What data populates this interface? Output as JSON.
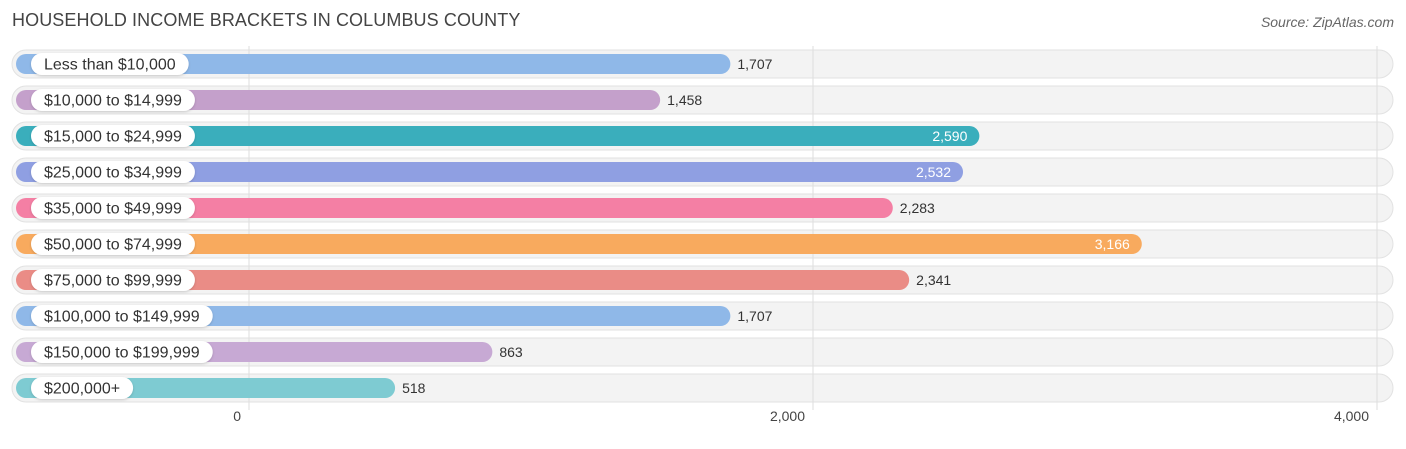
{
  "title": "HOUSEHOLD INCOME BRACKETS IN COLUMBUS COUNTY",
  "source": "Source: ZipAtlas.com",
  "chart_data": {
    "type": "bar",
    "orientation": "horizontal",
    "title": "HOUSEHOLD INCOME BRACKETS IN COLUMBUS COUNTY",
    "categories": [
      "Less than $10,000",
      "$10,000 to $14,999",
      "$15,000 to $24,999",
      "$25,000 to $34,999",
      "$35,000 to $49,999",
      "$50,000 to $74,999",
      "$75,000 to $99,999",
      "$100,000 to $149,999",
      "$150,000 to $199,999",
      "$200,000+"
    ],
    "values": [
      1707,
      1458,
      2590,
      2532,
      2283,
      3166,
      2341,
      1707,
      863,
      518
    ],
    "value_labels": [
      "1,707",
      "1,458",
      "2,590",
      "2,532",
      "2,283",
      "3,166",
      "2,341",
      "1,707",
      "863",
      "518"
    ],
    "colors": [
      "#8fb8e8",
      "#c4a0cb",
      "#3aaebc",
      "#8f9fe2",
      "#f47fa4",
      "#f8aa5e",
      "#ea8c86",
      "#8fb8e8",
      "#c7a9d4",
      "#7ecbd2"
    ],
    "xlim": [
      0,
      4000
    ],
    "x_ticks": [
      0,
      2000,
      4000
    ],
    "x_tick_labels": [
      "0",
      "2,000",
      "4,000"
    ],
    "grid": true
  }
}
